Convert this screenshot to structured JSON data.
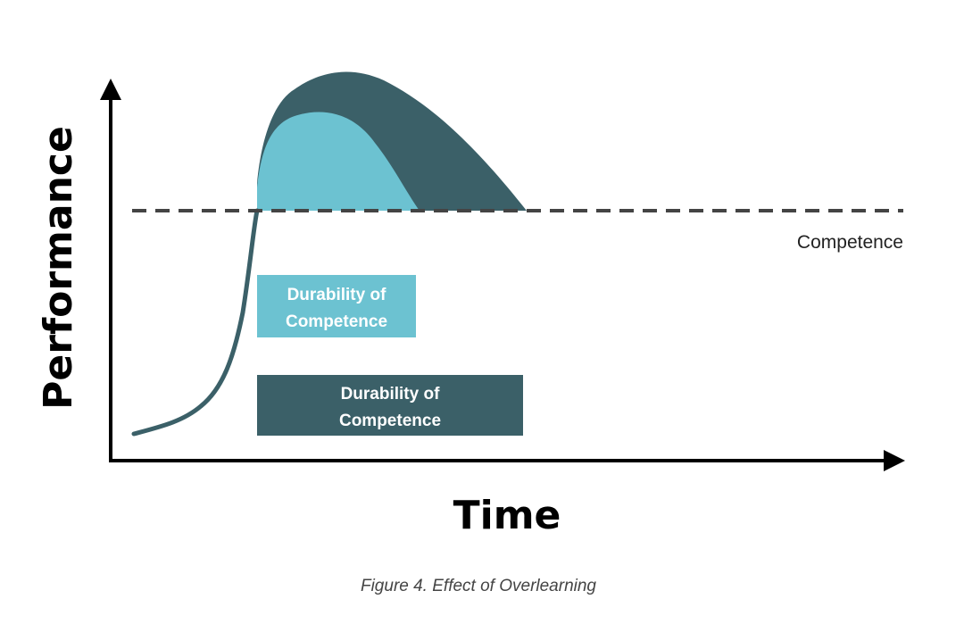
{
  "diagram": {
    "y_axis_label": "Performance",
    "x_axis_label": "Time",
    "threshold_label": "Competence",
    "legend": [
      {
        "line1": "Durability of",
        "line2": "Competence",
        "color": "#6cc2d1"
      },
      {
        "line1": "Durability of",
        "line2": "Competence",
        "color": "#3b6068"
      }
    ],
    "caption": "Figure 4. Effect of Overlearning",
    "colors": {
      "learning_curve": "#3b6068",
      "light_region": "#6cc2d1",
      "dark_region": "#3b6068",
      "threshold_line": "#444444",
      "axes": "#000000"
    }
  }
}
